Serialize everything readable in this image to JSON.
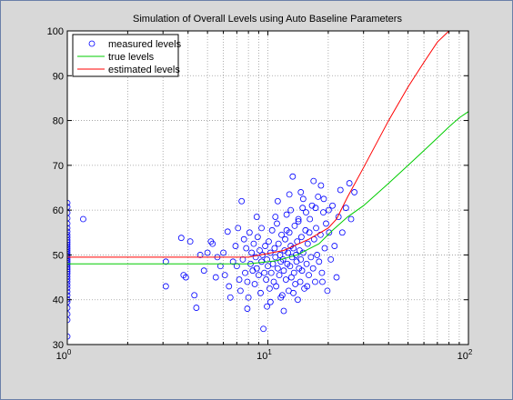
{
  "chart_data": {
    "type": "scatter",
    "title": "Simulation of Overall Levels using Auto Baseline Parameters",
    "xlabel": "",
    "ylabel": "",
    "xscale": "log",
    "xlim": [
      1,
      100
    ],
    "ylim": [
      30,
      100
    ],
    "x_ticks": [
      {
        "value": 1,
        "base": "10",
        "exp": "0"
      },
      {
        "value": 10,
        "base": "10",
        "exp": "1"
      },
      {
        "value": 100,
        "base": "10",
        "exp": "2"
      }
    ],
    "y_ticks": [
      30,
      40,
      50,
      60,
      70,
      80,
      90,
      100
    ],
    "grid": true,
    "legend_position": "top-left",
    "series": [
      {
        "name": "measured levels",
        "kind": "markers",
        "color": "#0000ff",
        "points": [
          [
            1,
            31.8
          ],
          [
            1,
            35.5
          ],
          [
            1,
            36.8
          ],
          [
            1,
            38.2
          ],
          [
            1,
            39.5
          ],
          [
            1,
            40.1
          ],
          [
            1,
            41.0
          ],
          [
            1,
            41.8
          ],
          [
            1,
            42.6
          ],
          [
            1,
            43.3
          ],
          [
            1,
            44.0
          ],
          [
            1,
            44.6
          ],
          [
            1,
            45.2
          ],
          [
            1,
            45.8
          ],
          [
            1,
            46.3
          ],
          [
            1,
            46.8
          ],
          [
            1,
            47.3
          ],
          [
            1,
            47.8
          ],
          [
            1,
            48.2
          ],
          [
            1,
            48.6
          ],
          [
            1,
            49.0
          ],
          [
            1,
            49.4
          ],
          [
            1,
            49.8
          ],
          [
            1,
            50.2
          ],
          [
            1,
            50.6
          ],
          [
            1,
            51.0
          ],
          [
            1,
            51.4
          ],
          [
            1,
            51.8
          ],
          [
            1,
            52.3
          ],
          [
            1,
            52.8
          ],
          [
            1,
            53.3
          ],
          [
            1,
            53.9
          ],
          [
            1,
            54.5
          ],
          [
            1,
            55.2
          ],
          [
            1,
            56.0
          ],
          [
            1,
            57.0
          ],
          [
            1,
            58.2
          ],
          [
            1,
            59.4
          ],
          [
            1,
            60.7
          ],
          [
            1,
            61.6
          ],
          [
            1.2,
            58.0
          ],
          [
            3.1,
            43.0
          ],
          [
            3.1,
            48.5
          ],
          [
            3.7,
            53.8
          ],
          [
            3.8,
            45.5
          ],
          [
            3.9,
            45.0
          ],
          [
            4.1,
            53.0
          ],
          [
            4.3,
            41.0
          ],
          [
            4.4,
            38.2
          ],
          [
            4.6,
            50.0
          ],
          [
            4.8,
            46.5
          ],
          [
            5.0,
            50.5
          ],
          [
            5.2,
            53.0
          ],
          [
            5.3,
            52.5
          ],
          [
            5.5,
            45.0
          ],
          [
            5.6,
            49.5
          ],
          [
            5.8,
            47.5
          ],
          [
            6.0,
            50.5
          ],
          [
            6.1,
            45.5
          ],
          [
            6.3,
            55.2
          ],
          [
            6.4,
            43.0
          ],
          [
            6.5,
            40.5
          ],
          [
            6.7,
            48.5
          ],
          [
            6.9,
            52.0
          ],
          [
            7.0,
            47.5
          ],
          [
            7.1,
            56.0
          ],
          [
            7.2,
            44.5
          ],
          [
            7.3,
            42.0
          ],
          [
            7.4,
            62.0
          ],
          [
            7.5,
            49.0
          ],
          [
            7.6,
            53.5
          ],
          [
            7.7,
            46.0
          ],
          [
            7.8,
            51.5
          ],
          [
            7.9,
            44.0
          ],
          [
            8.0,
            40.5
          ],
          [
            8.1,
            55.0
          ],
          [
            8.2,
            48.0
          ],
          [
            8.3,
            50.5
          ],
          [
            8.4,
            46.5
          ],
          [
            8.5,
            52.5
          ],
          [
            8.6,
            43.5
          ],
          [
            8.7,
            49.5
          ],
          [
            8.8,
            47.0
          ],
          [
            8.9,
            54.0
          ],
          [
            9.0,
            45.5
          ],
          [
            9.1,
            51.0
          ],
          [
            9.2,
            41.5
          ],
          [
            9.3,
            48.5
          ],
          [
            9.4,
            50.0
          ],
          [
            9.5,
            33.5
          ],
          [
            9.6,
            46.0
          ],
          [
            9.7,
            52.0
          ],
          [
            9.8,
            44.5
          ],
          [
            9.9,
            49.0
          ],
          [
            10.0,
            47.5
          ],
          [
            10.1,
            53.0
          ],
          [
            10.2,
            42.5
          ],
          [
            10.3,
            50.5
          ],
          [
            10.4,
            46.0
          ],
          [
            10.5,
            55.5
          ],
          [
            10.6,
            48.0
          ],
          [
            10.7,
            44.0
          ],
          [
            10.8,
            51.5
          ],
          [
            10.9,
            49.5
          ],
          [
            11.0,
            43.0
          ],
          [
            11.1,
            57.0
          ],
          [
            11.2,
            47.0
          ],
          [
            11.3,
            52.5
          ],
          [
            11.4,
            45.5
          ],
          [
            11.5,
            50.0
          ],
          [
            11.6,
            48.5
          ],
          [
            11.7,
            54.5
          ],
          [
            11.8,
            41.0
          ],
          [
            11.9,
            49.0
          ],
          [
            12.0,
            46.5
          ],
          [
            12.1,
            51.0
          ],
          [
            12.2,
            53.5
          ],
          [
            12.3,
            44.5
          ],
          [
            12.4,
            59.0
          ],
          [
            12.5,
            48.0
          ],
          [
            12.6,
            50.5
          ],
          [
            12.7,
            42.0
          ],
          [
            12.8,
            55.0
          ],
          [
            12.9,
            47.5
          ],
          [
            13.0,
            52.0
          ],
          [
            13.1,
            45.0
          ],
          [
            13.2,
            49.5
          ],
          [
            13.3,
            67.5
          ],
          [
            13.4,
            51.5
          ],
          [
            13.5,
            46.0
          ],
          [
            13.6,
            56.5
          ],
          [
            13.7,
            43.5
          ],
          [
            13.8,
            50.0
          ],
          [
            13.9,
            48.5
          ],
          [
            14.0,
            53.0
          ],
          [
            14.1,
            40.0
          ],
          [
            14.2,
            57.5
          ],
          [
            14.3,
            47.0
          ],
          [
            14.4,
            51.0
          ],
          [
            14.5,
            44.0
          ],
          [
            14.6,
            49.0
          ],
          [
            14.7,
            54.0
          ],
          [
            14.8,
            46.5
          ],
          [
            14.9,
            60.5
          ],
          [
            15.0,
            50.5
          ],
          [
            15.2,
            42.5
          ],
          [
            15.4,
            55.5
          ],
          [
            15.6,
            48.0
          ],
          [
            15.8,
            52.5
          ],
          [
            16.0,
            45.5
          ],
          [
            16.2,
            58.0
          ],
          [
            16.4,
            49.5
          ],
          [
            16.6,
            61.0
          ],
          [
            16.8,
            47.0
          ],
          [
            17.0,
            53.5
          ],
          [
            17.2,
            44.0
          ],
          [
            17.4,
            56.0
          ],
          [
            17.6,
            50.0
          ],
          [
            17.8,
            63.0
          ],
          [
            18.0,
            48.5
          ],
          [
            18.3,
            54.5
          ],
          [
            18.6,
            46.0
          ],
          [
            18.9,
            59.5
          ],
          [
            19.2,
            51.5
          ],
          [
            19.5,
            57.0
          ],
          [
            19.8,
            42.0
          ],
          [
            20.2,
            55.0
          ],
          [
            20.6,
            49.0
          ],
          [
            21.0,
            61.0
          ],
          [
            21.5,
            52.0
          ],
          [
            22.0,
            45.0
          ],
          [
            22.5,
            58.5
          ],
          [
            23.0,
            64.5
          ],
          [
            23.5,
            55.0
          ],
          [
            24.5,
            60.5
          ],
          [
            25.5,
            66.0
          ],
          [
            26.0,
            58.0
          ],
          [
            27.0,
            64.0
          ],
          [
            9.3,
            56.0
          ],
          [
            11.2,
            62.0
          ],
          [
            12.8,
            63.5
          ],
          [
            14.6,
            64.0
          ],
          [
            15.5,
            59.5
          ],
          [
            16.9,
            66.5
          ],
          [
            18.4,
            65.5
          ],
          [
            19.0,
            62.5
          ],
          [
            20.1,
            60.0
          ],
          [
            13.0,
            60.0
          ],
          [
            15.0,
            62.5
          ],
          [
            17.3,
            60.5
          ],
          [
            10.9,
            58.5
          ],
          [
            8.8,
            58.5
          ],
          [
            12.4,
            55.5
          ],
          [
            14.2,
            58.0
          ],
          [
            16.1,
            55.0
          ],
          [
            11.6,
            40.5
          ],
          [
            13.4,
            41.5
          ],
          [
            15.7,
            43.0
          ],
          [
            9.9,
            38.5
          ],
          [
            18.7,
            44.0
          ],
          [
            7.9,
            38.0
          ],
          [
            12.0,
            37.5
          ],
          [
            10.3,
            39.5
          ]
        ]
      },
      {
        "name": "true levels",
        "kind": "line",
        "color": "#00cc00",
        "points": [
          [
            1,
            48
          ],
          [
            8,
            48
          ],
          [
            11,
            48.7
          ],
          [
            14,
            50
          ],
          [
            18,
            52.5
          ],
          [
            21,
            55.5
          ],
          [
            25,
            58.5
          ],
          [
            30,
            61
          ],
          [
            40,
            66
          ],
          [
            50,
            70
          ],
          [
            60,
            73.3
          ],
          [
            70,
            76.1
          ],
          [
            80,
            78.6
          ],
          [
            90,
            80.6
          ],
          [
            100,
            82
          ]
        ]
      },
      {
        "name": "estimated levels",
        "kind": "line",
        "color": "#ff0000",
        "points": [
          [
            1,
            49.5
          ],
          [
            8,
            49.5
          ],
          [
            12,
            51
          ],
          [
            16,
            53.5
          ],
          [
            20,
            56
          ],
          [
            22,
            58
          ],
          [
            25,
            63
          ],
          [
            30,
            69.5
          ],
          [
            40,
            80
          ],
          [
            50,
            87.5
          ],
          [
            60,
            93
          ],
          [
            70,
            97.5
          ],
          [
            80,
            100
          ]
        ]
      }
    ]
  }
}
